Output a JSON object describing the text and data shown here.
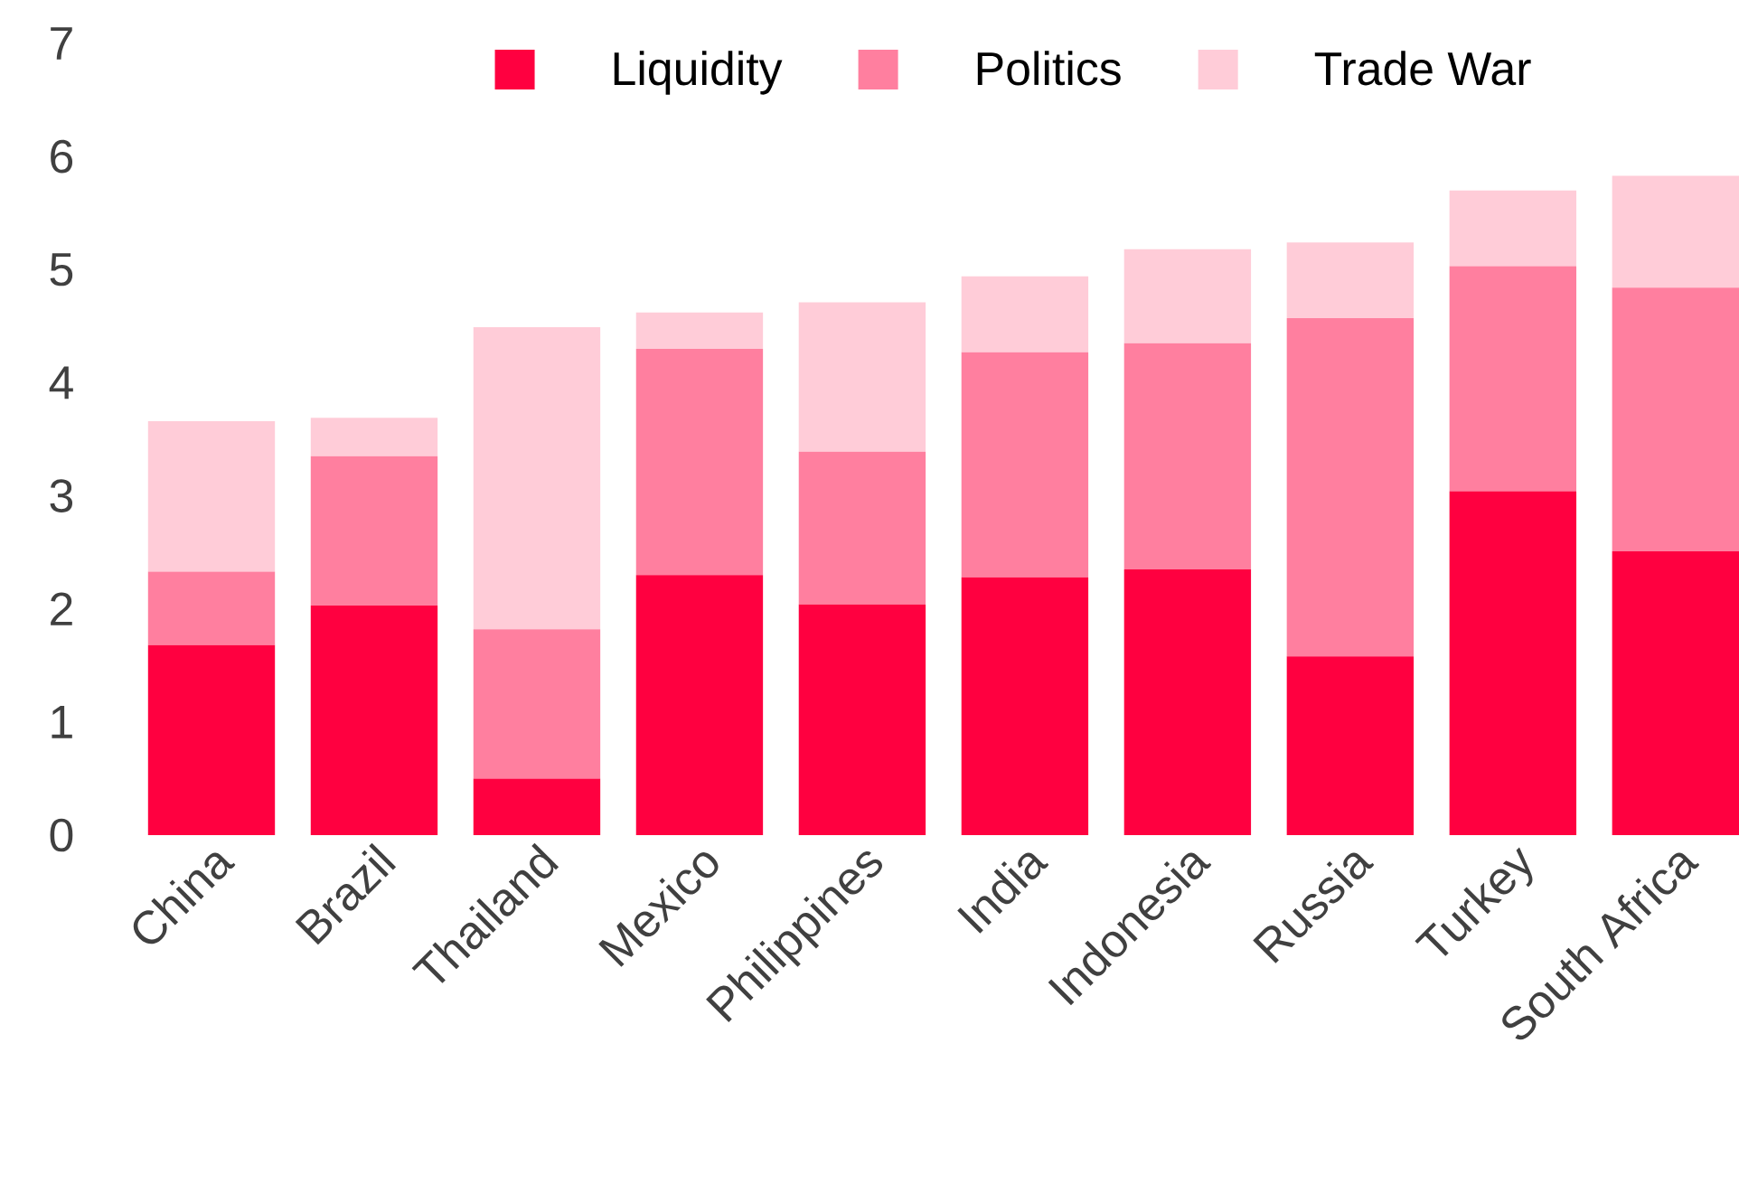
{
  "chart_data": {
    "type": "bar",
    "stacked": true,
    "legend": "top",
    "categories": [
      "China",
      "Brazil",
      "Thailand",
      "Mexico",
      "Philippines",
      "India",
      "Indonesia",
      "Russia",
      "Turkey",
      "South Africa"
    ],
    "series": [
      {
        "name": "Liquidity",
        "color": "#ff0040",
        "values": [
          1.68,
          2.03,
          0.5,
          2.3,
          2.04,
          2.28,
          2.35,
          1.58,
          3.04,
          2.51
        ]
      },
      {
        "name": "Politics",
        "color": "#ff7f9f",
        "values": [
          0.65,
          1.32,
          1.32,
          2.0,
          1.35,
          1.99,
          2.0,
          2.99,
          1.99,
          2.33
        ]
      },
      {
        "name": "Trade War",
        "color": "#ffccd8",
        "values": [
          1.33,
          0.34,
          2.67,
          0.32,
          1.32,
          0.67,
          0.83,
          0.67,
          0.67,
          0.99
        ]
      }
    ],
    "ylim": [
      0,
      7
    ],
    "yticks": [
      0,
      1,
      2,
      3,
      4,
      5,
      6,
      7
    ]
  }
}
